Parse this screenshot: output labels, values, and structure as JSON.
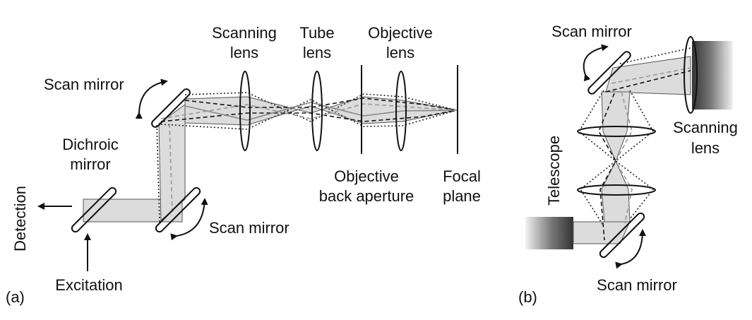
{
  "panel_a": {
    "tag": "(a)",
    "scanning_lens": [
      "Scanning",
      "lens"
    ],
    "tube_lens": [
      "Tube",
      "lens"
    ],
    "objective_lens": [
      "Objective",
      "lens"
    ],
    "scan_mirror_top": "Scan mirror",
    "dichroic_mirror": [
      "Dichroic",
      "mirror"
    ],
    "objective_back_aperture": [
      "Objective",
      "back aperture"
    ],
    "focal_plane": [
      "Focal",
      "plane"
    ],
    "detection": "Detection",
    "scan_mirror_bottom": "Scan mirror",
    "excitation": "Excitation"
  },
  "panel_b": {
    "tag": "(b)",
    "scan_mirror_top": "Scan mirror",
    "scanning_lens": [
      "Scanning",
      "lens"
    ],
    "telescope": "Telescope",
    "scan_mirror_bottom": "Scan mirror"
  }
}
